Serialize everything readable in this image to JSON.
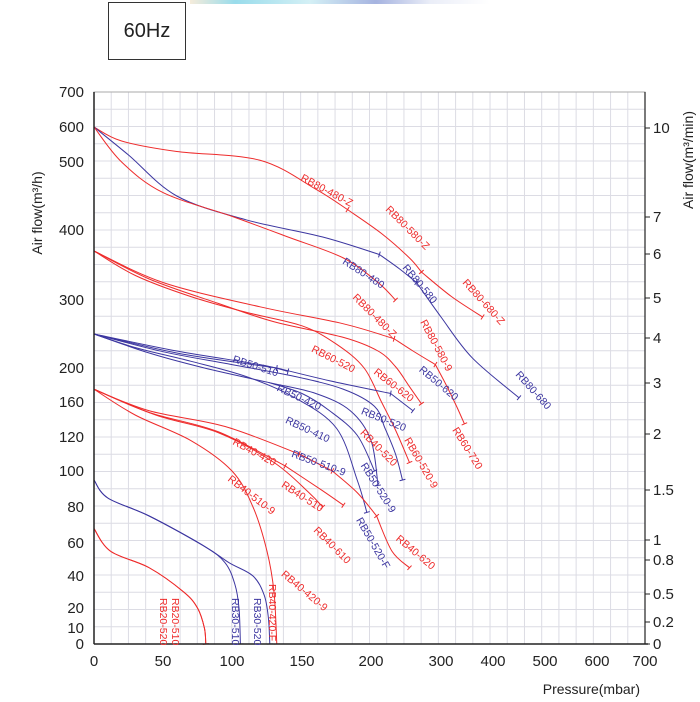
{
  "frequency_label": "60Hz",
  "colors": {
    "red": "#ee2b2b",
    "blue": "#3c36a0",
    "grid": "#dcdce4",
    "axis": "#222222"
  },
  "chart_data": {
    "type": "line",
    "title": "60Hz",
    "xlabel": "Pressure(mbar)",
    "ylabel_left": "Air flow(m³/h)",
    "ylabel_right": "Air flow(m³/min)",
    "grid": true,
    "x_ticks": [
      0,
      50,
      100,
      150,
      200,
      300,
      400,
      500,
      600,
      700
    ],
    "y_left_ticks": [
      0,
      10,
      20,
      40,
      60,
      80,
      100,
      120,
      160,
      200,
      300,
      400,
      500,
      600,
      700
    ],
    "y_right_ticks": [
      "0",
      "0.2",
      "0.5",
      "0.8",
      "1",
      "1.5",
      "2",
      "3",
      "4",
      "5",
      "6",
      "7",
      "10"
    ],
    "xlim": [
      0,
      700
    ],
    "ylim": [
      0,
      700
    ],
    "series": [
      {
        "name": "RB80-480-Z",
        "color": "red",
        "points": [
          [
            0,
            600
          ],
          [
            20,
            560
          ],
          [
            60,
            530
          ],
          [
            120,
            505
          ],
          [
            160,
            460
          ],
          [
            183,
            430
          ]
        ]
      },
      {
        "name": "RB80-580-Z",
        "color": "red",
        "points": [
          [
            183,
            430
          ],
          [
            215,
            395
          ],
          [
            255,
            360
          ],
          [
            272,
            340
          ]
        ]
      },
      {
        "name": "RB80-680-Z",
        "color": "red",
        "points": [
          [
            272,
            340
          ],
          [
            320,
            305
          ],
          [
            380,
            275
          ]
        ]
      },
      {
        "name": "RB80-480",
        "color": "blue",
        "points": [
          [
            0,
            600
          ],
          [
            25,
            520
          ],
          [
            60,
            450
          ],
          [
            110,
            415
          ],
          [
            165,
            390
          ],
          [
            212,
            365
          ]
        ]
      },
      {
        "name": "RB80-580",
        "color": "blue",
        "points": [
          [
            212,
            365
          ],
          [
            240,
            345
          ],
          [
            265,
            325
          ]
        ]
      },
      {
        "name": "RB80-680",
        "color": "blue",
        "points": [
          [
            265,
            325
          ],
          [
            300,
            275
          ],
          [
            360,
            215
          ],
          [
            450,
            165
          ]
        ]
      },
      {
        "name": "RB80-480-Z (lower)",
        "label": "RB80-480-Z",
        "color": "red",
        "points": [
          [
            0,
            600
          ],
          [
            20,
            500
          ],
          [
            50,
            455
          ],
          [
            100,
            420
          ],
          [
            140,
            390
          ],
          [
            180,
            360
          ],
          [
            210,
            325
          ],
          [
            235,
            300
          ]
        ]
      },
      {
        "name": "RB80-580-9",
        "color": "red",
        "points": [
          [
            0,
            370
          ],
          [
            40,
            330
          ],
          [
            90,
            295
          ],
          [
            130,
            268
          ],
          [
            180,
            245
          ],
          [
            210,
            225
          ],
          [
            235,
            202
          ],
          [
            255,
            178
          ],
          [
            272,
            158
          ]
        ]
      },
      {
        "name": "RB60-520",
        "color": "red",
        "points": [
          [
            0,
            370
          ],
          [
            50,
            325
          ],
          [
            120,
            290
          ],
          [
            180,
            265
          ],
          [
            233,
            243
          ]
        ]
      },
      {
        "name": "RB60-620",
        "color": "red",
        "points": [
          [
            233,
            243
          ],
          [
            260,
            225
          ],
          [
            292,
            205
          ]
        ]
      },
      {
        "name": "RB60-720",
        "color": "red",
        "points": [
          [
            292,
            205
          ],
          [
            310,
            180
          ],
          [
            330,
            155
          ],
          [
            345,
            135
          ]
        ]
      },
      {
        "name": "RB60-520-9",
        "color": "red",
        "points": [
          [
            0,
            370
          ],
          [
            30,
            335
          ],
          [
            70,
            305
          ],
          [
            110,
            282
          ],
          [
            150,
            262
          ],
          [
            175,
            235
          ],
          [
            195,
            200
          ],
          [
            215,
            160
          ],
          [
            235,
            128
          ],
          [
            255,
            105
          ]
        ]
      },
      {
        "name": "RB50-510",
        "color": "blue",
        "points": [
          [
            0,
            250
          ],
          [
            60,
            222
          ],
          [
            115,
            205
          ],
          [
            132,
            200
          ]
        ]
      },
      {
        "name": "RB50-520",
        "color": "blue",
        "points": [
          [
            132,
            200
          ],
          [
            170,
            185
          ],
          [
            228,
            170
          ]
        ]
      },
      {
        "name": "RB50-620",
        "color": "blue",
        "points": [
          [
            228,
            170
          ],
          [
            260,
            150
          ]
        ]
      },
      {
        "name": "RB50-420",
        "color": "blue",
        "points": [
          [
            0,
            250
          ],
          [
            60,
            225
          ],
          [
            120,
            205
          ],
          [
            140,
            196
          ]
        ]
      },
      {
        "name": "RB50-410",
        "color": "blue",
        "points": [
          [
            0,
            250
          ],
          [
            50,
            224
          ],
          [
            100,
            205
          ],
          [
            145,
            190
          ],
          [
            180,
            175
          ],
          [
            205,
            155
          ],
          [
            220,
            130
          ],
          [
            235,
            110
          ],
          [
            245,
            95
          ]
        ]
      },
      {
        "name": "RB50-510-9",
        "color": "blue",
        "points": [
          [
            0,
            250
          ],
          [
            40,
            222
          ],
          [
            80,
            200
          ],
          [
            126,
            183
          ],
          [
            160,
            170
          ],
          [
            185,
            150
          ],
          [
            200,
            118
          ],
          [
            210,
            92
          ]
        ]
      },
      {
        "name": "RB50-520-9",
        "color": "blue",
        "points": [
          [
            126,
            183
          ],
          [
            150,
            170
          ],
          [
            170,
            150
          ],
          [
            190,
            122
          ],
          [
            205,
            100
          ]
        ]
      },
      {
        "name": "RB50-520-F",
        "color": "blue",
        "points": [
          [
            0,
            250
          ],
          [
            30,
            230
          ],
          [
            70,
            210
          ],
          [
            110,
            190
          ],
          [
            145,
            165
          ],
          [
            175,
            130
          ],
          [
            190,
            95
          ],
          [
            197,
            77
          ]
        ]
      },
      {
        "name": "RB40-420",
        "color": "red",
        "points": [
          [
            0,
            175
          ],
          [
            40,
            150
          ],
          [
            95,
            132
          ],
          [
            148,
            110
          ]
        ]
      },
      {
        "name": "RB40-510",
        "color": "red",
        "points": [
          [
            148,
            110
          ],
          [
            172,
            100
          ]
        ]
      },
      {
        "name": "RB40-610",
        "color": "red",
        "points": [
          [
            172,
            100
          ],
          [
            190,
            88
          ],
          [
            208,
            75
          ]
        ]
      },
      {
        "name": "RB40-620",
        "color": "red",
        "points": [
          [
            208,
            75
          ],
          [
            230,
            55
          ],
          [
            255,
            45
          ]
        ]
      },
      {
        "name": "RB40-510-9",
        "color": "red",
        "points": [
          [
            0,
            175
          ],
          [
            40,
            148
          ],
          [
            90,
            126
          ],
          [
            138,
            103
          ]
        ]
      },
      {
        "name": "RB40-420-9",
        "color": "red",
        "points": [
          [
            138,
            103
          ],
          [
            165,
            89
          ],
          [
            180,
            81
          ]
        ]
      },
      {
        "name": "RB40-520",
        "color": "red",
        "points": [
          [
            0,
            175
          ],
          [
            45,
            145
          ],
          [
            90,
            125
          ],
          [
            130,
            105
          ],
          [
            155,
            88
          ],
          [
            165,
            80
          ]
        ]
      },
      {
        "name": "RB40-420-F",
        "color": "red",
        "points": [
          [
            0,
            175
          ],
          [
            30,
            145
          ],
          [
            70,
            118
          ],
          [
            100,
            100
          ],
          [
            115,
            80
          ],
          [
            125,
            55
          ],
          [
            130,
            30
          ],
          [
            132,
            0
          ]
        ]
      },
      {
        "name": "RB30-510",
        "color": "blue",
        "points": [
          [
            0,
            95
          ],
          [
            10,
            85
          ],
          [
            40,
            75
          ],
          [
            80,
            58
          ],
          [
            95,
            48
          ],
          [
            102,
            35
          ],
          [
            105,
            20
          ],
          [
            106,
            0
          ]
        ]
      },
      {
        "name": "RB30-520",
        "color": "blue",
        "points": [
          [
            0,
            95
          ],
          [
            10,
            85
          ],
          [
            40,
            75
          ],
          [
            80,
            58
          ],
          [
            98,
            48
          ],
          [
            115,
            40
          ],
          [
            123,
            28
          ],
          [
            126,
            15
          ],
          [
            127,
            0
          ]
        ]
      },
      {
        "name": "RB20-520",
        "color": "red",
        "points": [
          [
            0,
            68
          ],
          [
            12,
            55
          ],
          [
            40,
            45
          ],
          [
            65,
            30
          ],
          [
            75,
            20
          ],
          [
            80,
            10
          ],
          [
            81,
            0
          ]
        ]
      },
      {
        "name": "RB20-510",
        "color": "red",
        "points": [
          [
            0,
            68
          ],
          [
            12,
            55
          ],
          [
            40,
            45
          ],
          [
            65,
            30
          ],
          [
            75,
            20
          ],
          [
            80,
            10
          ],
          [
            81,
            0
          ]
        ]
      }
    ]
  },
  "labels": [
    {
      "text": "RB80-480-Z",
      "color": "red"
    },
    {
      "text": "RB80-580-Z",
      "color": "red"
    },
    {
      "text": "RB80-680-Z",
      "color": "red"
    },
    {
      "text": "RB80-480",
      "color": "blue"
    },
    {
      "text": "RB80-580",
      "color": "blue"
    },
    {
      "text": "RB80-680",
      "color": "blue"
    },
    {
      "text": "RB80-480-Z",
      "color": "red"
    },
    {
      "text": "RB80-580-9",
      "color": "red"
    },
    {
      "text": "RB60-520",
      "color": "red"
    },
    {
      "text": "RB60-620",
      "color": "red"
    },
    {
      "text": "RB60-720",
      "color": "red"
    },
    {
      "text": "RB60-520-9",
      "color": "red"
    },
    {
      "text": "RB50-510",
      "color": "blue"
    },
    {
      "text": "RB50-420",
      "color": "blue"
    },
    {
      "text": "RB50-410",
      "color": "blue"
    },
    {
      "text": "RB50-510-9",
      "color": "blue"
    },
    {
      "text": "RB50-520",
      "color": "blue"
    },
    {
      "text": "RB50-620",
      "color": "blue"
    },
    {
      "text": "RB50-520-9",
      "color": "blue"
    },
    {
      "text": "RB50-520-F",
      "color": "blue"
    },
    {
      "text": "RB40-420",
      "color": "red"
    },
    {
      "text": "RB40-510",
      "color": "red"
    },
    {
      "text": "RB40-510-9",
      "color": "red"
    },
    {
      "text": "RB40-520",
      "color": "red"
    },
    {
      "text": "RB40-610",
      "color": "red"
    },
    {
      "text": "RB40-420-9",
      "color": "red"
    },
    {
      "text": "RB40-620",
      "color": "red"
    },
    {
      "text": "RB40-420-F",
      "color": "red"
    },
    {
      "text": "RB30-510",
      "color": "blue"
    },
    {
      "text": "RB30-520",
      "color": "blue"
    },
    {
      "text": "RB20-520",
      "color": "red"
    },
    {
      "text": "RB20-510",
      "color": "red"
    }
  ]
}
